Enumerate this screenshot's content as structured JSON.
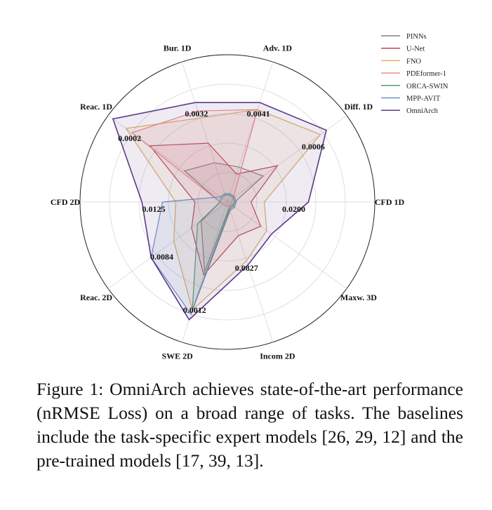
{
  "chart_data": {
    "type": "radar",
    "axes": [
      "Bur. 1D",
      "Adv. 1D",
      "Diff. 1D",
      "CFD 1D",
      "Maxw. 3D",
      "Incom 2D",
      "SWE 2D",
      "Reac. 2D",
      "CFD 2D",
      "Reac. 1D"
    ],
    "value_labels": [
      "0.0032",
      "0.0041",
      "0.0006",
      "0.0200",
      "",
      "0.0827",
      "0.0012",
      "0.0084",
      "0.0125",
      "0.0002"
    ],
    "rlim": [
      0,
      1
    ],
    "grid": true,
    "legend_position": "top-right",
    "series": [
      {
        "name": "PINNs",
        "color": "#808080",
        "values": [
          0.28,
          0.25,
          0.3,
          0.05,
          0.04,
          0.04,
          0.5,
          0.22,
          0.05,
          0.36
        ]
      },
      {
        "name": "U-Net",
        "color": "#c0405a",
        "values": [
          0.42,
          0.2,
          0.42,
          0.16,
          0.28,
          0.24,
          0.52,
          0.3,
          0.22,
          0.65
        ]
      },
      {
        "name": "FNO",
        "color": "#e0b060",
        "values": [
          0.6,
          0.66,
          0.78,
          0.25,
          0.33,
          0.42,
          0.77,
          0.45,
          0.35,
          0.85
        ]
      },
      {
        "name": "PDEformer-1",
        "color": "#f08a90",
        "values": [
          0.65,
          0.66,
          0.05,
          0.03,
          0.03,
          0.03,
          0.03,
          0.03,
          0.05,
          0.8
        ]
      },
      {
        "name": "ORCA-SWIN",
        "color": "#5a9a6a",
        "values": [
          0.05,
          0.05,
          0.05,
          0.05,
          0.05,
          0.05,
          0.77,
          0.25,
          0.05,
          0.05
        ]
      },
      {
        "name": "MPP-AVIT",
        "color": "#6a90c8",
        "values": [
          0.06,
          0.06,
          0.06,
          0.06,
          0.06,
          0.06,
          0.8,
          0.64,
          0.44,
          0.06
        ]
      },
      {
        "name": "OmniArch",
        "color": "#5a3a8a",
        "values": [
          0.71,
          0.71,
          0.83,
          0.55,
          0.37,
          0.45,
          0.84,
          0.64,
          0.58,
          0.96
        ]
      }
    ]
  },
  "caption": "Figure 1: OmniArch achieves state-of-the-art performance (nRMSE Loss) on a broad range of tasks. The baselines include the task-specific expert models [26, 29, 12] and the pre-trained models [17, 39, 13]."
}
